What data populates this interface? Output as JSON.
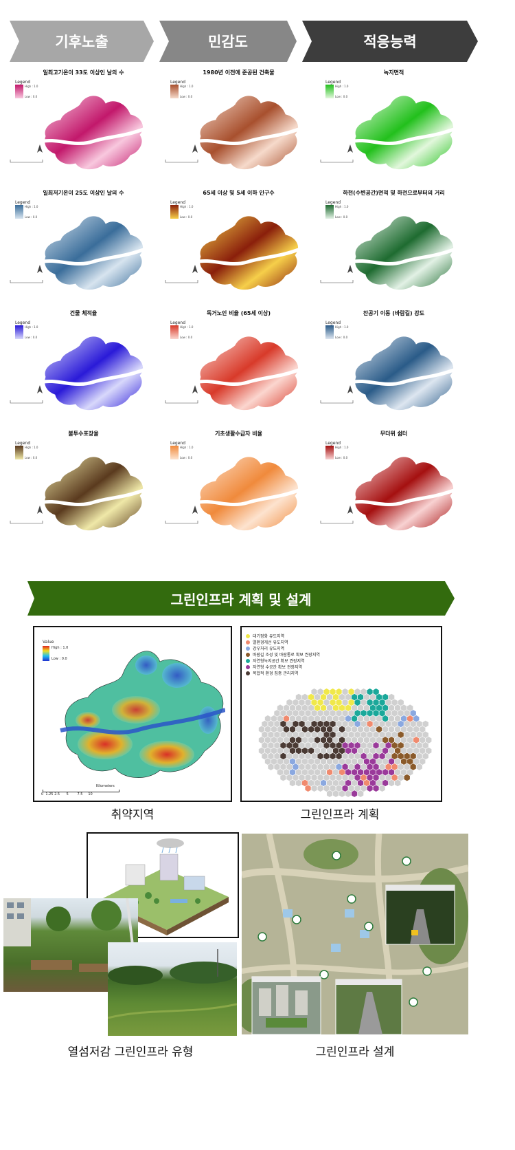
{
  "headers": [
    {
      "label": "기후노출",
      "color": "#a7a7a7"
    },
    {
      "label": "민감도",
      "color": "#878787"
    },
    {
      "label": "적응능력",
      "color": "#3d3d3d"
    }
  ],
  "maps": [
    {
      "title": "일최고기온이 33도 이상인 날의 수",
      "legend": "Legend",
      "high": "High : 1.0",
      "low": "Low : 0.0",
      "hi": "#c2186b",
      "lo": "#f8c8de"
    },
    {
      "title": "1980년 이전에 준공된 건축물",
      "legend": "Legend",
      "high": "High : 1.0",
      "low": "Low : 0.0",
      "hi": "#a8502e",
      "lo": "#f6dacb"
    },
    {
      "title": "녹지면적",
      "legend": "Legend",
      "high": "High : 1.0",
      "low": "Low : 0.0",
      "hi": "#22c01c",
      "lo": "#e2f7dc"
    },
    {
      "title": "일최저기온이 25도 이상인 날의 수",
      "legend": "Legend",
      "high": "High : 1.0",
      "low": "Low : 0.0",
      "hi": "#3a6d9a",
      "lo": "#d7e4ef"
    },
    {
      "title": "65세 이상 및 5세 이하 인구수",
      "legend": "Legend",
      "high": "High : 1.0",
      "low": "Low : 0.0",
      "hi": "#8a1f0b",
      "lo": "#f6cf4a"
    },
    {
      "title": "하천(수변공간)면적 및 하천으로부터의 거리",
      "legend": "Legend",
      "high": "High : 1.0",
      "low": "Low : 0.0",
      "hi": "#1e6b30",
      "lo": "#e2f1e5"
    },
    {
      "title": "건물 체적율",
      "legend": "Legend",
      "high": "High : 1.0",
      "low": "Low : 0.0",
      "hi": "#2a1ad8",
      "lo": "#d8d8fb"
    },
    {
      "title": "독거노인 비율 (65세 이상)",
      "legend": "Legend",
      "high": "High : 1.0",
      "low": "Low : 0.0",
      "hi": "#d83a2a",
      "lo": "#fbd6cf"
    },
    {
      "title": "찬공기 이동 (바람길) 강도",
      "legend": "Legend",
      "high": "High : 1.0",
      "low": "Low : 0.0",
      "hi": "#2a5b88",
      "lo": "#dde6f0"
    },
    {
      "title": "불투수포장율",
      "legend": "Legend",
      "high": "High : 1.0",
      "low": "Low : 0.0",
      "hi": "#5a3a1e",
      "lo": "#efe8a8"
    },
    {
      "title": "기초생활수급자 비율",
      "legend": "Legend",
      "high": "High : 1.0",
      "low": "Low : 0.0",
      "hi": "#f08a3c",
      "lo": "#fde3cf"
    },
    {
      "title": "무더위 쉼터",
      "legend": "Legend",
      "high": "High : 1.0",
      "low": "Low : 0.0",
      "hi": "#a51010",
      "lo": "#f8d2d2"
    }
  ],
  "banner": {
    "label": "그린인프라 계획 및 설계",
    "color": "#336b0e"
  },
  "vuln_panel": {
    "legend_title": "Value",
    "high": "High : 1.0",
    "low": "Low : 0.0",
    "scale": "Kilometers",
    "scale_ticks": "0  1.25 2.5      5        7.5     10",
    "caption": "취약지역"
  },
  "plan_panel": {
    "legend": [
      {
        "label": "대기정화 유도지역",
        "color": "#f0e84a"
      },
      {
        "label": "열환경개선 유도지역",
        "color": "#f08a6e"
      },
      {
        "label": "강우처리 유도지역",
        "color": "#8aa8e0"
      },
      {
        "label": "바람길 조성 및 바람통로 확보 권장지역",
        "color": "#8a5a2a"
      },
      {
        "label": "자연형녹지공간 확보 권장지역",
        "color": "#1aa89a"
      },
      {
        "label": "자연형 수공간 확보 권장지역",
        "color": "#9a3a9a"
      },
      {
        "label": "복합적 환경 집중 관리지역",
        "color": "#4a3a34"
      }
    ],
    "caption": "그린인프라 계획"
  },
  "types_caption": "열섬저감 그린인프라 유형",
  "design_caption": "그린인프라 설계"
}
